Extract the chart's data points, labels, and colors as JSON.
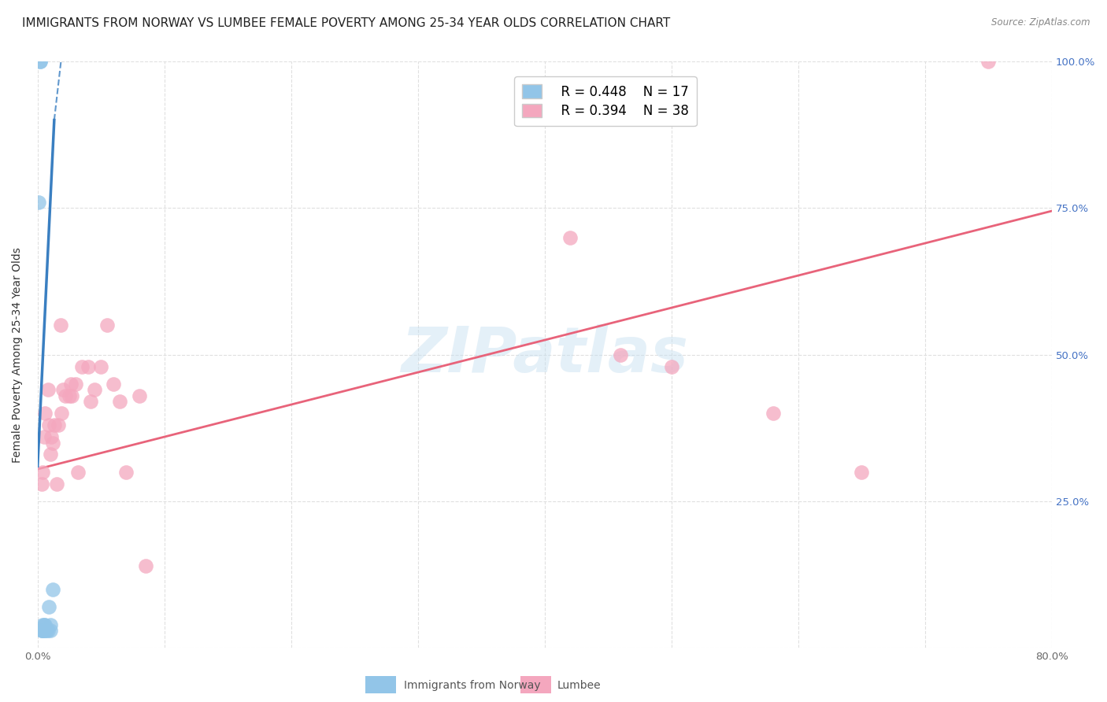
{
  "title": "IMMIGRANTS FROM NORWAY VS LUMBEE FEMALE POVERTY AMONG 25-34 YEAR OLDS CORRELATION CHART",
  "source": "Source: ZipAtlas.com",
  "ylabel": "Female Poverty Among 25-34 Year Olds",
  "xlim": [
    0.0,
    0.8
  ],
  "ylim": [
    0.0,
    1.0
  ],
  "xtick_vals": [
    0.0,
    0.1,
    0.2,
    0.3,
    0.4,
    0.5,
    0.6,
    0.7,
    0.8
  ],
  "xticklabels": [
    "0.0%",
    "",
    "",
    "",
    "",
    "",
    "",
    "",
    "80.0%"
  ],
  "ytick_vals": [
    0.0,
    0.25,
    0.5,
    0.75,
    1.0
  ],
  "yticklabels_left": [
    "",
    "",
    "",
    "",
    ""
  ],
  "yticklabels_right": [
    "",
    "25.0%",
    "50.0%",
    "75.0%",
    "100.0%"
  ],
  "watermark": "ZIPatlas",
  "legend_blue_r": "R = 0.448",
  "legend_blue_n": "N = 17",
  "legend_pink_r": "R = 0.394",
  "legend_pink_n": "N = 38",
  "blue_color": "#92c5e8",
  "pink_color": "#f4a7be",
  "blue_line_color": "#3a7fc1",
  "pink_line_color": "#e8637a",
  "norway_x": [
    0.001,
    0.002,
    0.002,
    0.003,
    0.003,
    0.004,
    0.004,
    0.005,
    0.005,
    0.006,
    0.006,
    0.007,
    0.008,
    0.009,
    0.01,
    0.01,
    0.012
  ],
  "norway_y": [
    0.76,
    1.0,
    1.0,
    0.03,
    0.03,
    0.04,
    0.03,
    0.04,
    0.03,
    0.03,
    0.04,
    0.03,
    0.03,
    0.07,
    0.04,
    0.03,
    0.1
  ],
  "lumbee_x": [
    0.003,
    0.004,
    0.005,
    0.006,
    0.008,
    0.009,
    0.01,
    0.011,
    0.012,
    0.013,
    0.015,
    0.016,
    0.018,
    0.019,
    0.02,
    0.022,
    0.025,
    0.026,
    0.027,
    0.03,
    0.032,
    0.035,
    0.04,
    0.042,
    0.045,
    0.05,
    0.055,
    0.06,
    0.065,
    0.07,
    0.08,
    0.085,
    0.42,
    0.46,
    0.5,
    0.58,
    0.65,
    0.75
  ],
  "lumbee_y": [
    0.28,
    0.3,
    0.36,
    0.4,
    0.44,
    0.38,
    0.33,
    0.36,
    0.35,
    0.38,
    0.28,
    0.38,
    0.55,
    0.4,
    0.44,
    0.43,
    0.43,
    0.45,
    0.43,
    0.45,
    0.3,
    0.48,
    0.48,
    0.42,
    0.44,
    0.48,
    0.55,
    0.45,
    0.42,
    0.3,
    0.43,
    0.14,
    0.7,
    0.5,
    0.48,
    0.4,
    0.3,
    1.0
  ],
  "grid_color": "#e0e0e0",
  "grid_style": "--",
  "background_color": "#ffffff",
  "title_fontsize": 11,
  "axis_label_fontsize": 10,
  "tick_fontsize": 9.5,
  "right_tick_color": "#4472c4",
  "legend_fontsize": 12,
  "bottom_legend_label1": "Immigrants from Norway",
  "bottom_legend_label2": "Lumbee",
  "pink_line_intercept": 0.305,
  "pink_line_slope": 0.55,
  "blue_line_intercept": 0.31,
  "blue_line_slope": 45.0
}
